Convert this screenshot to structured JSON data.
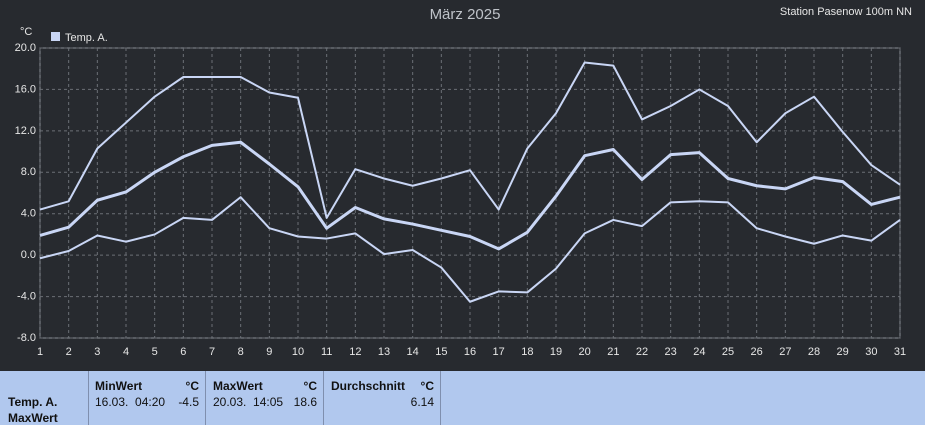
{
  "chart_data": {
    "type": "line",
    "title": "März 2025",
    "station": "Station Pasenow 100m NN",
    "y_unit": "°C",
    "legend": {
      "name": "Temp. A.",
      "color": "#c9d6f5"
    },
    "x": [
      1,
      2,
      3,
      4,
      5,
      6,
      7,
      8,
      9,
      10,
      11,
      12,
      13,
      14,
      15,
      16,
      17,
      18,
      19,
      20,
      21,
      22,
      23,
      24,
      25,
      26,
      27,
      28,
      29,
      30,
      31
    ],
    "xlim": [
      1,
      31
    ],
    "xticks": [
      1,
      2,
      3,
      4,
      5,
      6,
      7,
      8,
      9,
      10,
      11,
      12,
      13,
      14,
      15,
      16,
      17,
      18,
      19,
      20,
      21,
      22,
      23,
      24,
      25,
      26,
      27,
      28,
      29,
      30,
      31
    ],
    "ylim": [
      -8,
      20
    ],
    "yticks": [
      {
        "value": -8,
        "label": "-8.0"
      },
      {
        "value": -4,
        "label": "-4.0"
      },
      {
        "value": 0,
        "label": "0.0"
      },
      {
        "value": 4,
        "label": "4.0"
      },
      {
        "value": 8,
        "label": "8.0"
      },
      {
        "value": 12,
        "label": "12.0"
      },
      {
        "value": 16,
        "label": "16.0"
      },
      {
        "value": 20,
        "label": "20.0"
      }
    ],
    "grid": true,
    "series": [
      {
        "color": "#c9d6f5",
        "width": 2,
        "values": [
          4.4,
          5.2,
          10.3,
          12.8,
          15.3,
          17.2,
          17.2,
          17.2,
          15.7,
          15.2,
          3.6,
          8.3,
          7.4,
          6.7,
          7.4,
          8.2,
          4.4,
          10.3,
          13.7,
          18.6,
          18.3,
          13.1,
          14.4,
          16.0,
          14.4,
          10.9,
          13.7,
          15.3,
          11.9,
          8.7,
          6.8
        ]
      },
      {
        "color": "#c9d6f5",
        "width": 3,
        "values": [
          1.9,
          2.7,
          5.3,
          6.1,
          8.0,
          9.5,
          10.6,
          10.9,
          8.8,
          6.6,
          2.6,
          4.6,
          3.5,
          3.0,
          2.4,
          1.8,
          0.6,
          2.2,
          5.7,
          9.6,
          10.2,
          7.3,
          9.7,
          9.9,
          7.4,
          6.7,
          6.4,
          7.5,
          7.1,
          4.9,
          5.6
        ]
      },
      {
        "color": "#c9d6f5",
        "width": 2,
        "values": [
          -0.3,
          0.4,
          1.9,
          1.3,
          2.0,
          3.6,
          3.4,
          5.6,
          2.6,
          1.8,
          1.6,
          2.1,
          0.1,
          0.5,
          -1.2,
          -4.5,
          -3.5,
          -3.6,
          -1.3,
          2.1,
          3.4,
          2.8,
          5.1,
          5.2,
          5.1,
          2.6,
          1.8,
          1.1,
          1.9,
          1.4,
          3.4
        ]
      }
    ]
  },
  "summary": {
    "row_label": [
      "Temp. A.",
      "MaxWert"
    ],
    "columns": [
      {
        "header": "MinWert",
        "unit": "°C",
        "when": "16.03.  04:20",
        "value": -4.5
      },
      {
        "header": "MaxWert",
        "unit": "°C",
        "when": "20.03.  14:05",
        "value": 18.6
      },
      {
        "header": "Durchschnitt",
        "unit": "°C",
        "value": 6.14
      }
    ]
  }
}
